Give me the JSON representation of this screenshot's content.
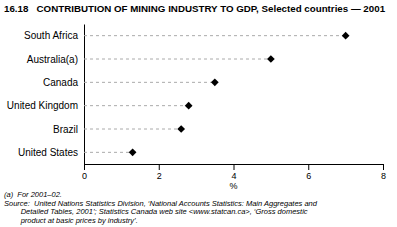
{
  "chart_data": {
    "type": "dot",
    "orientation": "horizontal",
    "title": "16.18   CONTRIBUTION OF MINING INDUSTRY TO GDP, Selected countries — 2001",
    "categories": [
      "South Africa",
      "Australia(a)",
      "Canada",
      "United Kingdom",
      "Brazil",
      "United States"
    ],
    "values": [
      7.0,
      5.0,
      3.5,
      2.8,
      2.6,
      1.3
    ],
    "x_label": "%",
    "xlim": [
      0,
      8
    ],
    "xticks": [
      0,
      2,
      4,
      6,
      8
    ],
    "color": "black",
    "marker": "diamond",
    "line_style": "dashed",
    "grid": false,
    "annotations": [
      "(a)  For 2001–02.",
      "Source:  United Nations Statistics Division, ‘National Accounts Statistics: Main Aggregates and\n        Detailed Tables, 2001’; Statistics Canada web site <www.statcan.ca>, ‘Gross domestic\n        product at basic prices by industry’."
    ]
  }
}
